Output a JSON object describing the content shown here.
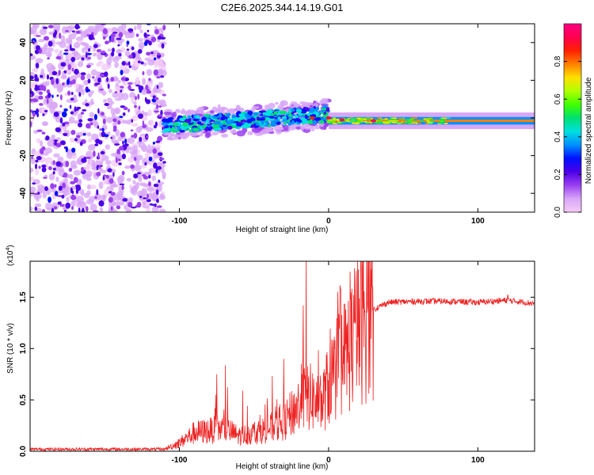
{
  "title": "C2E6.2025.344.14.19.G01",
  "chart_data": [
    {
      "type": "heatmap",
      "name": "spectrogram",
      "xlabel": "Height of straight line (km)",
      "ylabel": "Frequency (Hz)",
      "xlim": [
        -200,
        138
      ],
      "ylim": [
        -50,
        50
      ],
      "x_ticks": [
        -100,
        0,
        100
      ],
      "y_ticks": [
        -40,
        -20,
        0,
        20,
        40
      ],
      "colorbar": {
        "label": "Normalized spectral amplitude",
        "range": [
          0,
          1
        ],
        "ticks": [
          "0.0",
          "0.2",
          "0.4",
          "0.6",
          "0.8"
        ],
        "tick_values": [
          0.0,
          0.2,
          0.4,
          0.6,
          0.8
        ],
        "colors": [
          "#f4ccf6",
          "#d8a6f8",
          "#9a40f0",
          "#4b00e8",
          "#0010ff",
          "#0090ff",
          "#00e0e0",
          "#00e070",
          "#40ff00",
          "#b0ff00",
          "#ffe000",
          "#ff8000",
          "#ff2000",
          "#ff0050",
          "#ff0080"
        ]
      },
      "regions": [
        {
          "name": "noise",
          "x_range": [
            -200,
            -110
          ],
          "freq_range": [
            -50,
            50
          ],
          "amplitude": 0.12
        },
        {
          "name": "turbulent-band",
          "x_range": [
            -110,
            -20
          ],
          "center_freq": [
            -4,
            2
          ],
          "half_width": 6,
          "amplitude": 0.35
        },
        {
          "name": "stable-carrier",
          "x_range": [
            0,
            138
          ],
          "center_freq": -1.5,
          "half_width": 2,
          "amplitude": 0.75
        }
      ],
      "hot_spots": [
        {
          "x": 0,
          "freq": 0,
          "amplitude": 0.9
        },
        {
          "x": -11,
          "freq": 0,
          "amplitude": 0.85
        },
        {
          "x": 9,
          "freq": -1,
          "amplitude": 0.95
        },
        {
          "x": 30,
          "freq": -1.5,
          "amplitude": 0.9
        }
      ]
    },
    {
      "type": "line",
      "name": "snr",
      "xlabel": "Height of straight line (km)",
      "ylabel": "SNR (10 * v/v)",
      "multiplier_label": "(x10",
      "multiplier_exp": "4",
      "multiplier_close": ")",
      "xlim": [
        -200,
        138
      ],
      "ylim": [
        0,
        1.85
      ],
      "x_ticks": [
        -100,
        0,
        100
      ],
      "y_ticks": [
        "0.0",
        "0.5",
        "1.0",
        "1.5"
      ],
      "y_tick_values": [
        0.0,
        0.5,
        1.0,
        1.5
      ],
      "color": "#ee2222",
      "envelope": {
        "x": [
          -200,
          -110,
          -100,
          -90,
          -80,
          -70,
          -60,
          -50,
          -40,
          -30,
          -20,
          -15,
          -10,
          -5,
          0,
          5,
          10,
          15,
          20,
          30,
          40,
          60,
          80,
          100,
          120,
          138
        ],
        "y": [
          0.02,
          0.02,
          0.08,
          0.18,
          0.2,
          0.22,
          0.15,
          0.18,
          0.22,
          0.28,
          0.45,
          0.55,
          0.5,
          0.45,
          0.65,
          0.8,
          0.9,
          1.05,
          1.2,
          1.38,
          1.45,
          1.46,
          1.46,
          1.45,
          1.47,
          1.44
        ]
      },
      "peaks": [
        {
          "x": -15,
          "y": 1.85
        },
        {
          "x": -17,
          "y": 1.42
        },
        {
          "x": 8,
          "y": 1.58
        },
        {
          "x": 120,
          "y": 1.52
        },
        {
          "x": -75,
          "y": 0.75
        },
        {
          "x": -30,
          "y": 0.9
        }
      ]
    }
  ]
}
